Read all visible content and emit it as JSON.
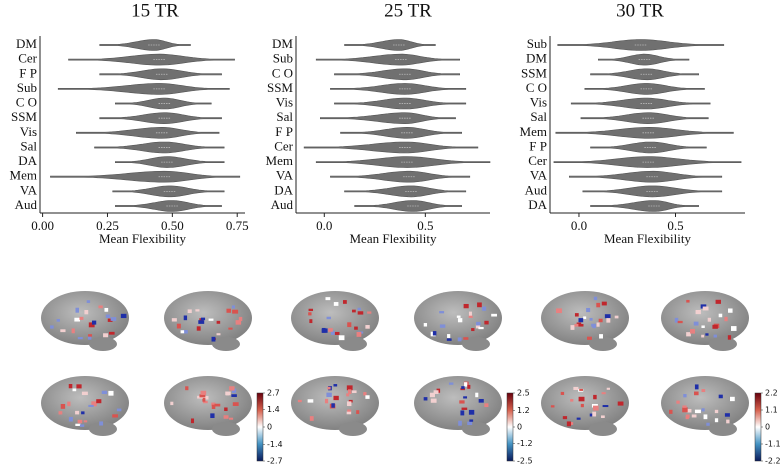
{
  "chart_data": [
    {
      "type": "violin",
      "title": "15 TR",
      "x_label": "Mean Flexibility",
      "categories": [
        "DM",
        "Cer",
        "F P",
        "Sub",
        "C O",
        "SSM",
        "Vis",
        "Sal",
        "DA",
        "Mem",
        "VA",
        "Aud"
      ],
      "min": [
        0.22,
        0.1,
        0.22,
        0.06,
        0.28,
        0.22,
        0.13,
        0.2,
        0.28,
        0.03,
        0.27,
        0.28
      ],
      "median": [
        0.43,
        0.45,
        0.46,
        0.45,
        0.47,
        0.47,
        0.46,
        0.47,
        0.48,
        0.47,
        0.49,
        0.5
      ],
      "max": [
        0.57,
        0.74,
        0.69,
        0.72,
        0.65,
        0.69,
        0.68,
        0.7,
        0.7,
        0.76,
        0.7,
        0.69
      ],
      "color": "#707070",
      "xlim": [
        -0.01,
        0.78
      ],
      "xticks": [
        {
          "value": 0,
          "label": "0.00"
        },
        0.25,
        {
          "value": 0.5,
          "label": "0.50"
        },
        0.75
      ]
    },
    {
      "type": "violin",
      "title": "25 TR",
      "x_label": "Mean Flexibility",
      "categories": [
        "DM",
        "Sub",
        "C O",
        "SSM",
        "Vis",
        "Sal",
        "F P",
        "Cer",
        "Mem",
        "VA",
        "DA",
        "Aud"
      ],
      "min": [
        0.1,
        -0.04,
        0.05,
        0.03,
        0.05,
        -0.02,
        0.08,
        -0.1,
        -0.04,
        0.03,
        0.1,
        0.15
      ],
      "median": [
        0.37,
        0.38,
        0.4,
        0.4,
        0.4,
        0.4,
        0.41,
        0.4,
        0.41,
        0.42,
        0.43,
        0.44
      ],
      "max": [
        0.55,
        0.67,
        0.67,
        0.7,
        0.7,
        0.65,
        0.68,
        0.76,
        0.82,
        0.72,
        0.7,
        0.68
      ],
      "color": "#707070",
      "xlim": [
        -0.14,
        0.82
      ],
      "xticks": [
        {
          "value": 0,
          "label": "0.0"
        },
        0.5
      ]
    },
    {
      "type": "violin",
      "title": "30 TR",
      "x_label": "Mean Flexibility",
      "categories": [
        "Sub",
        "DM",
        "SSM",
        "C O",
        "Vis",
        "Sal",
        "Mem",
        "F P",
        "Cer",
        "VA",
        "Aud",
        "DA"
      ],
      "min": [
        -0.11,
        0.1,
        0.06,
        0.03,
        -0.04,
        0.01,
        -0.12,
        0.06,
        -0.13,
        -0.05,
        0.02,
        0.06
      ],
      "median": [
        0.32,
        0.34,
        0.35,
        0.35,
        0.35,
        0.36,
        0.36,
        0.37,
        0.36,
        0.38,
        0.38,
        0.39
      ],
      "max": [
        0.75,
        0.57,
        0.62,
        0.65,
        0.68,
        0.67,
        0.8,
        0.66,
        0.84,
        0.74,
        0.74,
        0.62
      ],
      "color": "#707070",
      "xlim": [
        -0.15,
        0.86
      ],
      "xticks": [
        {
          "value": 0,
          "label": "0.0"
        },
        0.5
      ]
    }
  ],
  "colorbars": [
    {
      "ticks": [
        2.7,
        1.4,
        0,
        -1.4,
        -2.7
      ]
    },
    {
      "ticks": [
        2.5,
        1.2,
        0,
        -1.2,
        -2.5
      ]
    },
    {
      "ticks": [
        2.2,
        1.1,
        0,
        -1.1,
        -2.2
      ]
    }
  ]
}
